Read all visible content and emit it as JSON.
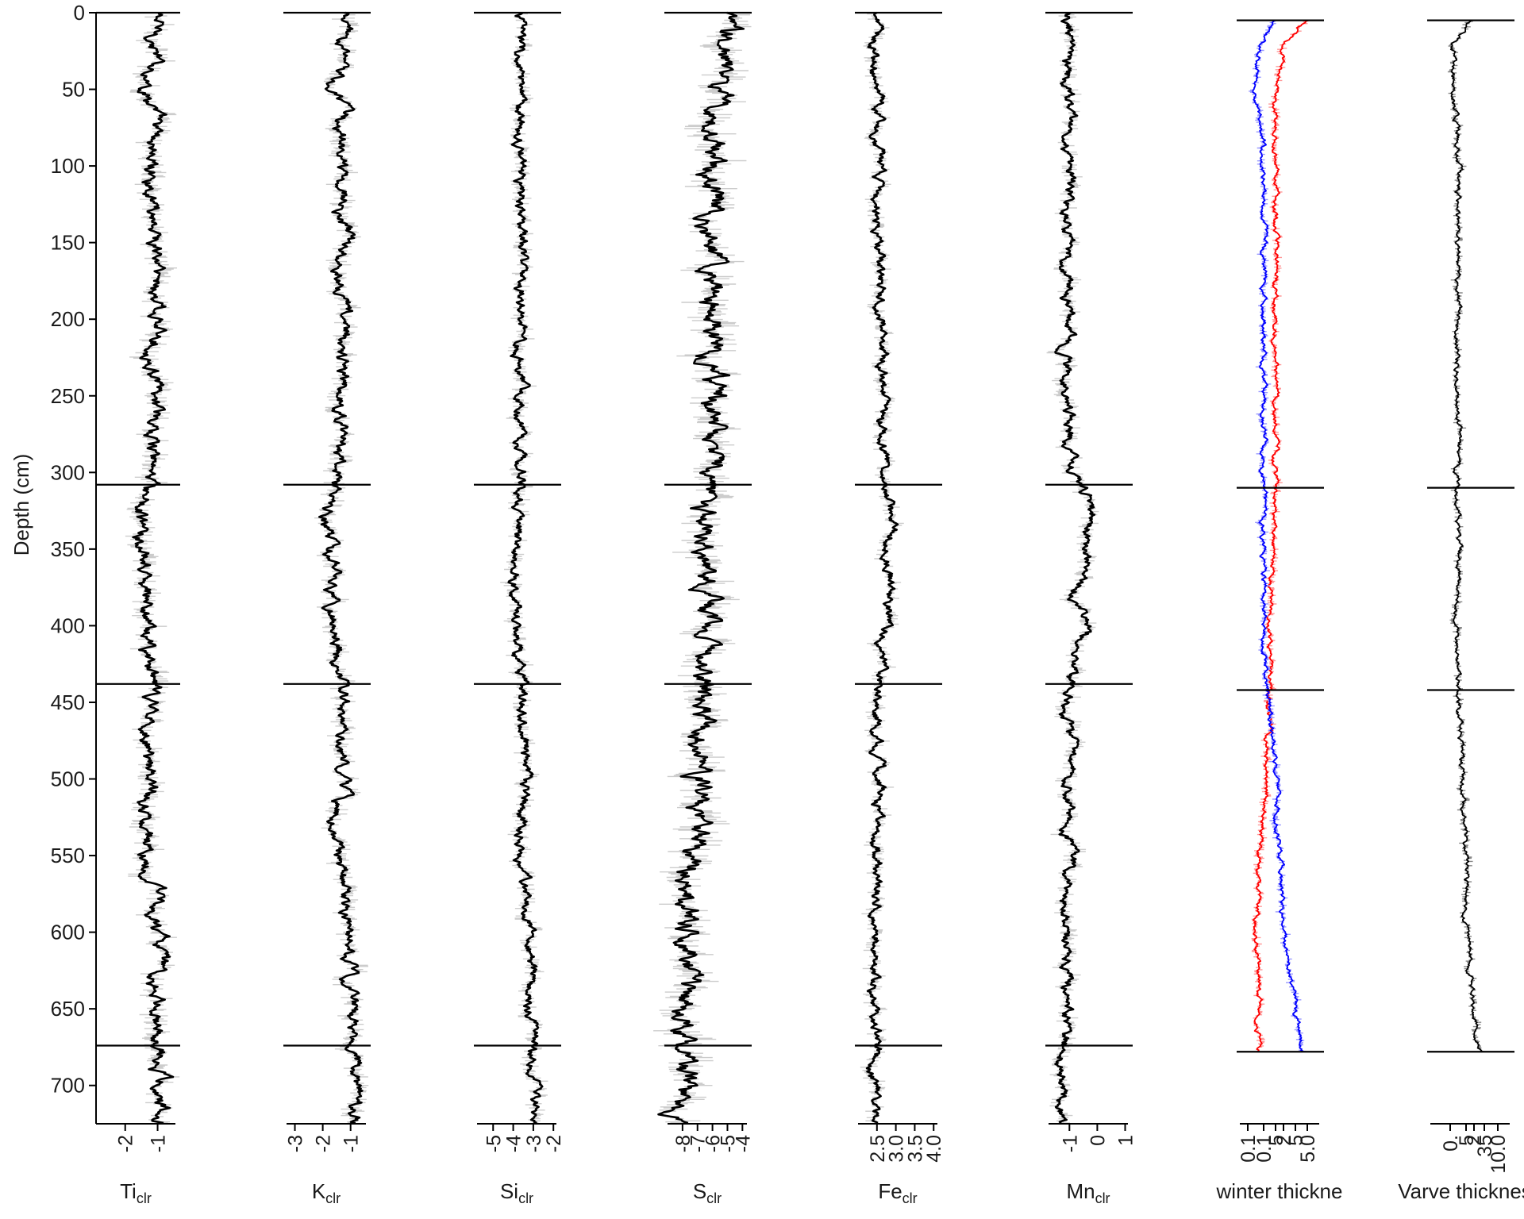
{
  "chart_data": {
    "type": "line",
    "y_axis": {
      "label": "Depth (cm)",
      "range": [
        0,
        725
      ],
      "reversed": true,
      "ticks": [
        0,
        50,
        100,
        150,
        200,
        250,
        300,
        350,
        400,
        450,
        500,
        550,
        600,
        650,
        700
      ]
    },
    "boundary_depths": [
      308,
      438,
      674
    ],
    "grid": false,
    "legend": "none",
    "panels": [
      {
        "id": "ti",
        "name": "Ti",
        "sub": "clr",
        "xlim": [
          -2.9,
          -0.45
        ],
        "ticks": [
          -2,
          -1
        ],
        "tick_labels": [
          "-2",
          "-1"
        ],
        "boundaries": [
          0,
          308,
          438,
          674
        ],
        "envelope": 0.35,
        "series": [
          {
            "color": "#000000",
            "shade": "#cccccc",
            "profile": [
              [
                0,
                -1.0
              ],
              [
                40,
                -1.15
              ],
              [
                50,
                -1.35
              ],
              [
                60,
                -1.1
              ],
              [
                100,
                -1.2
              ],
              [
                140,
                -1.05
              ],
              [
                200,
                -1.0
              ],
              [
                250,
                -1.15
              ],
              [
                300,
                -1.25
              ],
              [
                330,
                -1.6
              ],
              [
                360,
                -1.45
              ],
              [
                400,
                -1.35
              ],
              [
                438,
                -1.2
              ],
              [
                500,
                -1.25
              ],
              [
                530,
                -1.35
              ],
              [
                580,
                -1.1
              ],
              [
                640,
                -0.95
              ],
              [
                680,
                -0.9
              ],
              [
                725,
                -0.85
              ]
            ]
          }
        ]
      },
      {
        "id": "k",
        "name": "K",
        "sub": "clr",
        "xlim": [
          -3.3,
          -0.45
        ],
        "ticks": [
          -3,
          -2,
          -1
        ],
        "tick_labels": [
          "-3",
          "-2",
          "-1"
        ],
        "boundaries": [
          0,
          308,
          438,
          674
        ],
        "envelope": 0.35,
        "series": [
          {
            "color": "#000000",
            "shade": "#cccccc",
            "profile": [
              [
                0,
                -1.25
              ],
              [
                40,
                -1.35
              ],
              [
                50,
                -1.75
              ],
              [
                60,
                -1.35
              ],
              [
                100,
                -1.35
              ],
              [
                150,
                -1.2
              ],
              [
                200,
                -1.25
              ],
              [
                250,
                -1.35
              ],
              [
                300,
                -1.45
              ],
              [
                330,
                -1.85
              ],
              [
                360,
                -1.7
              ],
              [
                400,
                -1.6
              ],
              [
                438,
                -1.3
              ],
              [
                500,
                -1.4
              ],
              [
                530,
                -1.5
              ],
              [
                600,
                -1.1
              ],
              [
                660,
                -0.95
              ],
              [
                725,
                -0.8
              ]
            ]
          }
        ]
      },
      {
        "id": "si",
        "name": "Si",
        "sub": "clr",
        "xlim": [
          -5.8,
          -1.85
        ],
        "ticks": [
          -5,
          -4,
          -3,
          -2
        ],
        "tick_labels": [
          "-5",
          "-4",
          "-3",
          "-2"
        ],
        "boundaries": [
          0,
          308,
          438,
          674
        ],
        "envelope": 0.4,
        "series": [
          {
            "color": "#000000",
            "shade": "#cccccc",
            "profile": [
              [
                0,
                -3.6
              ],
              [
                50,
                -3.8
              ],
              [
                100,
                -3.6
              ],
              [
                200,
                -3.7
              ],
              [
                250,
                -3.6
              ],
              [
                300,
                -3.5
              ],
              [
                330,
                -3.8
              ],
              [
                400,
                -3.9
              ],
              [
                438,
                -3.6
              ],
              [
                500,
                -3.5
              ],
              [
                550,
                -3.6
              ],
              [
                600,
                -3.2
              ],
              [
                650,
                -3.1
              ],
              [
                700,
                -3.0
              ],
              [
                725,
                -2.9
              ]
            ]
          }
        ]
      },
      {
        "id": "s",
        "name": "S",
        "sub": "clr",
        "xlim": [
          -9.0,
          -3.7
        ],
        "ticks": [
          -8,
          -7,
          -6,
          -5,
          -4
        ],
        "tick_labels": [
          "-8",
          "-7",
          "-6",
          "-5",
          "-4"
        ],
        "boundaries": [
          0,
          308,
          438,
          674
        ],
        "envelope": 1.2,
        "series": [
          {
            "color": "#000000",
            "shade": "#cccccc",
            "profile": [
              [
                0,
                -5.3
              ],
              [
                50,
                -5.6
              ],
              [
                100,
                -5.9
              ],
              [
                150,
                -6.0
              ],
              [
                200,
                -6.1
              ],
              [
                250,
                -6.0
              ],
              [
                300,
                -6.3
              ],
              [
                350,
                -6.5
              ],
              [
                400,
                -6.4
              ],
              [
                438,
                -6.5
              ],
              [
                500,
                -6.8
              ],
              [
                550,
                -7.2
              ],
              [
                600,
                -7.4
              ],
              [
                650,
                -7.8
              ],
              [
                700,
                -8.1
              ],
              [
                725,
                -8.3
              ]
            ]
          }
        ]
      },
      {
        "id": "fe",
        "name": "Fe",
        "sub": "clr",
        "xlim": [
          2.0,
          4.1
        ],
        "ticks": [
          2.5,
          3.0,
          3.5,
          4.0
        ],
        "tick_labels": [
          "2.5",
          "3.0",
          "3.5",
          "4.0"
        ],
        "boundaries": [
          0,
          308,
          438,
          674
        ],
        "envelope": 0.2,
        "series": [
          {
            "color": "#000000",
            "shade": "#cccccc",
            "profile": [
              [
                0,
                2.45
              ],
              [
                100,
                2.5
              ],
              [
                200,
                2.6
              ],
              [
                250,
                2.65
              ],
              [
                300,
                2.7
              ],
              [
                330,
                2.9
              ],
              [
                360,
                2.85
              ],
              [
                400,
                2.75
              ],
              [
                438,
                2.55
              ],
              [
                500,
                2.55
              ],
              [
                600,
                2.5
              ],
              [
                700,
                2.45
              ],
              [
                725,
                2.45
              ]
            ]
          }
        ]
      },
      {
        "id": "mn",
        "name": "Mn",
        "sub": "clr",
        "xlim": [
          -1.75,
          1.1
        ],
        "ticks": [
          -1,
          0,
          1
        ],
        "tick_labels": [
          "-1",
          "0",
          "1"
        ],
        "boundaries": [
          0,
          308,
          438,
          674
        ],
        "envelope": 0.3,
        "series": [
          {
            "color": "#000000",
            "shade": "#cccccc",
            "profile": [
              [
                0,
                -1.1
              ],
              [
                100,
                -1.05
              ],
              [
                200,
                -1.1
              ],
              [
                300,
                -0.95
              ],
              [
                315,
                -0.3
              ],
              [
                330,
                -0.1
              ],
              [
                345,
                -0.6
              ],
              [
                360,
                -0.4
              ],
              [
                380,
                -0.8
              ],
              [
                395,
                -0.2
              ],
              [
                410,
                -0.6
              ],
              [
                430,
                -0.9
              ],
              [
                438,
                -1.1
              ],
              [
                500,
                -0.95
              ],
              [
                550,
                -1.0
              ],
              [
                600,
                -1.1
              ],
              [
                650,
                -1.15
              ],
              [
                700,
                -1.3
              ],
              [
                725,
                -1.35
              ]
            ]
          }
        ]
      },
      {
        "id": "wt",
        "name": "winter thickne",
        "sub": "",
        "xlim": [
          0.0,
          1.0
        ],
        "ticks": [
          0.1,
          0.3,
          0.45,
          0.55,
          0.7,
          0.85
        ],
        "tick_labels": [
          "0.1",
          "0.1",
          "5",
          "2",
          "5",
          "5.0"
        ],
        "boundaries": [
          5,
          310,
          442,
          678
        ],
        "envelope": 0.05,
        "series": [
          {
            "color": "#ff0000",
            "shade": "#ff9999",
            "profile": [
              [
                5,
                0.85
              ],
              [
                20,
                0.55
              ],
              [
                50,
                0.45
              ],
              [
                100,
                0.45
              ],
              [
                200,
                0.45
              ],
              [
                300,
                0.45
              ],
              [
                400,
                0.38
              ],
              [
                440,
                0.38
              ],
              [
                500,
                0.35
              ],
              [
                550,
                0.25
              ],
              [
                600,
                0.2
              ],
              [
                650,
                0.25
              ],
              [
                678,
                0.25
              ]
            ]
          },
          {
            "color": "#0000ff",
            "shade": "#9999ff",
            "profile": [
              [
                5,
                0.4
              ],
              [
                20,
                0.25
              ],
              [
                50,
                0.2
              ],
              [
                100,
                0.3
              ],
              [
                200,
                0.3
              ],
              [
                300,
                0.3
              ],
              [
                400,
                0.3
              ],
              [
                440,
                0.35
              ],
              [
                500,
                0.45
              ],
              [
                550,
                0.5
              ],
              [
                600,
                0.55
              ],
              [
                650,
                0.7
              ],
              [
                678,
                0.8
              ]
            ]
          }
        ]
      },
      {
        "id": "vt",
        "name": "Varve thickness",
        "sub": "",
        "xlim": [
          0.0,
          1.0
        ],
        "ticks": [
          0.25,
          0.45,
          0.55,
          0.68,
          0.85
        ],
        "tick_labels": [
          "0.",
          "5",
          "2",
          "35",
          "10.0"
        ],
        "boundaries": [
          5,
          310,
          442,
          678
        ],
        "envelope": 0.05,
        "series": [
          {
            "color": "#000000",
            "shade": "#888888",
            "profile": [
              [
                5,
                0.5
              ],
              [
                20,
                0.3
              ],
              [
                50,
                0.3
              ],
              [
                100,
                0.35
              ],
              [
                200,
                0.35
              ],
              [
                300,
                0.35
              ],
              [
                400,
                0.35
              ],
              [
                440,
                0.35
              ],
              [
                500,
                0.4
              ],
              [
                550,
                0.45
              ],
              [
                600,
                0.45
              ],
              [
                650,
                0.55
              ],
              [
                678,
                0.65
              ]
            ]
          }
        ]
      }
    ]
  }
}
